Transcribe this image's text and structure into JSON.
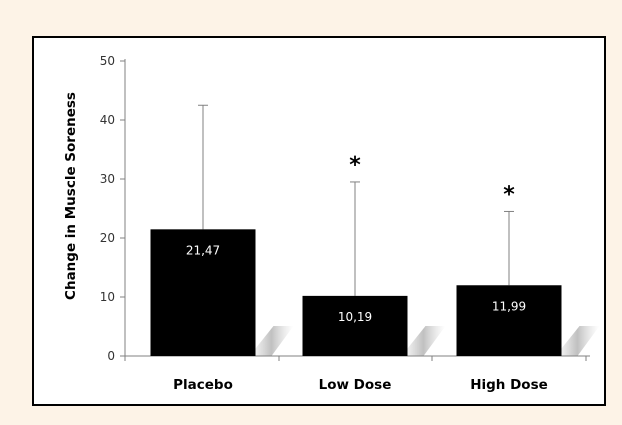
{
  "chart_data": {
    "type": "bar",
    "ylabel": "Change in Muscle Soreness",
    "xlabel": "",
    "ylim": [
      0,
      50
    ],
    "yticks": [
      0,
      10,
      20,
      30,
      40,
      50
    ],
    "grid": false,
    "categories": [
      "Placebo",
      "Low Dose",
      "High Dose"
    ],
    "values": [
      21.47,
      10.19,
      11.99
    ],
    "value_labels": [
      "21,47",
      "10,19",
      "11,99"
    ],
    "error_upper": [
      42.5,
      29.5,
      24.5
    ],
    "significance": [
      "",
      "*",
      "*"
    ],
    "colors": {
      "bar": "#000000",
      "background": "#fdf3e7",
      "plot_background": "#ffffff"
    }
  }
}
